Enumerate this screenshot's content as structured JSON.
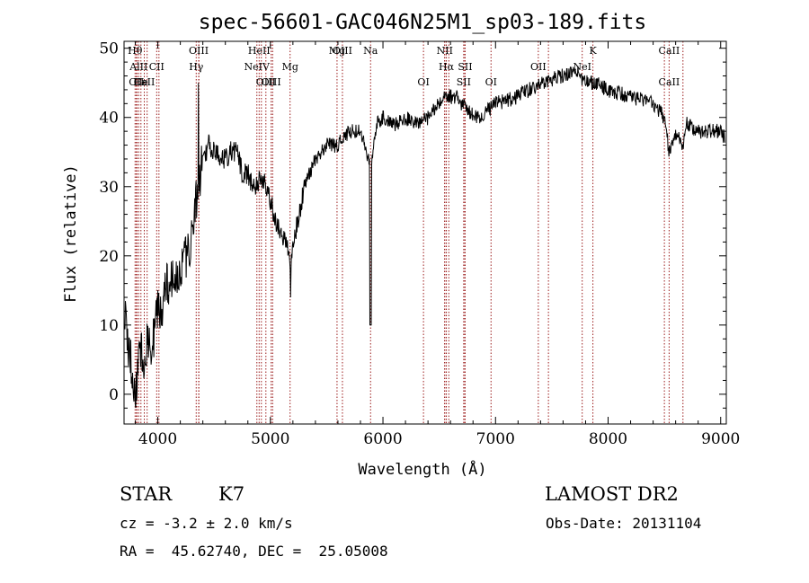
{
  "chart_data": {
    "type": "line",
    "title": "spec-56601-GAC046N25M1_sp03-189.fits",
    "xlabel": "Wavelength (Å)",
    "ylabel": "Flux (relative)",
    "xlim": [
      3700,
      9050
    ],
    "ylim": [
      -4.3,
      51
    ],
    "x_ticks": [
      4000,
      5000,
      6000,
      7000,
      8000,
      9000
    ],
    "y_ticks": [
      0,
      10,
      20,
      30,
      40,
      50
    ],
    "grid": false,
    "spectral_lines": [
      {
        "label": "Hθ",
        "wavelength": 3798,
        "row": 0
      },
      {
        "label": "AlII",
        "wavelength": 3830,
        "row": 1
      },
      {
        "label": "CII",
        "wavelength": 3810,
        "row": 2
      },
      {
        "label": "He",
        "wavelength": 3850,
        "row": 2
      },
      {
        "label": "CaII",
        "wavelength": 3880,
        "row": 2
      },
      {
        "label": "CII",
        "wavelength": 3990,
        "row": 1
      },
      {
        "label": "OIII",
        "wavelength": 4363,
        "row": 0
      },
      {
        "label": "Hγ",
        "wavelength": 4341,
        "row": 1
      },
      {
        "label": "HeII",
        "wavelength": 4900,
        "row": 0
      },
      {
        "label": "NeIV",
        "wavelength": 4880,
        "row": 1
      },
      {
        "label": "OIII",
        "wavelength": 4960,
        "row": 2
      },
      {
        "label": "OIII",
        "wavelength": 5007,
        "row": 2
      },
      {
        "label": "Mg",
        "wavelength": 5175,
        "row": 1
      },
      {
        "label": "Mg",
        "wavelength": 5592,
        "row": 0
      },
      {
        "label": "OIII",
        "wavelength": 5640,
        "row": 0
      },
      {
        "label": "Na",
        "wavelength": 5890,
        "row": 0
      },
      {
        "label": "OI",
        "wavelength": 6360,
        "row": 2
      },
      {
        "label": "NII",
        "wavelength": 6549,
        "row": 0
      },
      {
        "label": "Hα",
        "wavelength": 6563,
        "row": 1
      },
      {
        "label": "SII",
        "wavelength": 6730,
        "row": 1
      },
      {
        "label": "SII",
        "wavelength": 6717,
        "row": 2
      },
      {
        "label": "OI",
        "wavelength": 6960,
        "row": 2
      },
      {
        "label": "OII",
        "wavelength": 7380,
        "row": 1
      },
      {
        "label": "K",
        "wavelength": 7865,
        "row": 0
      },
      {
        "label": "NeI",
        "wavelength": 7770,
        "row": 1
      },
      {
        "label": "CaII",
        "wavelength": 8542,
        "row": 0
      },
      {
        "label": "CaII",
        "wavelength": 8542,
        "row": 2
      }
    ],
    "extra_line_markers": [
      3815,
      3905,
      4010,
      4365,
      4920,
      5020,
      6548,
      6585,
      6720,
      7470,
      8500,
      8665
    ],
    "spectrum_anchors": [
      [
        3700,
        12
      ],
      [
        3730,
        8
      ],
      [
        3760,
        5
      ],
      [
        3790,
        -1
      ],
      [
        3820,
        3
      ],
      [
        3850,
        7
      ],
      [
        3880,
        5
      ],
      [
        3910,
        8
      ],
      [
        3940,
        6
      ],
      [
        3970,
        9
      ],
      [
        4000,
        12
      ],
      [
        4040,
        13
      ],
      [
        4080,
        16
      ],
      [
        4120,
        16
      ],
      [
        4170,
        17
      ],
      [
        4230,
        19
      ],
      [
        4280,
        21
      ],
      [
        4320,
        26
      ],
      [
        4360,
        30
      ],
      [
        4400,
        34
      ],
      [
        4450,
        36
      ],
      [
        4500,
        35
      ],
      [
        4550,
        34
      ],
      [
        4600,
        34
      ],
      [
        4650,
        35
      ],
      [
        4700,
        35
      ],
      [
        4750,
        32
      ],
      [
        4800,
        32
      ],
      [
        4850,
        30
      ],
      [
        4900,
        31
      ],
      [
        4950,
        31
      ],
      [
        5000,
        28
      ],
      [
        5050,
        25
      ],
      [
        5100,
        23
      ],
      [
        5150,
        22
      ],
      [
        5175,
        18
      ],
      [
        5220,
        23
      ],
      [
        5300,
        30
      ],
      [
        5400,
        34
      ],
      [
        5500,
        36
      ],
      [
        5600,
        36
      ],
      [
        5700,
        38
      ],
      [
        5800,
        38
      ],
      [
        5890,
        33
      ],
      [
        5950,
        39
      ],
      [
        6000,
        40
      ],
      [
        6100,
        39
      ],
      [
        6200,
        40
      ],
      [
        6300,
        39
      ],
      [
        6400,
        40
      ],
      [
        6500,
        42
      ],
      [
        6563,
        43
      ],
      [
        6650,
        43
      ],
      [
        6750,
        41
      ],
      [
        6850,
        40
      ],
      [
        7000,
        42
      ],
      [
        7200,
        43
      ],
      [
        7400,
        45
      ],
      [
        7600,
        46
      ],
      [
        7700,
        47
      ],
      [
        7800,
        45
      ],
      [
        7900,
        45
      ],
      [
        8000,
        44
      ],
      [
        8200,
        43
      ],
      [
        8400,
        42
      ],
      [
        8500,
        40
      ],
      [
        8542,
        35
      ],
      [
        8600,
        38
      ],
      [
        8662,
        36
      ],
      [
        8700,
        39
      ],
      [
        8800,
        38
      ],
      [
        8900,
        38
      ],
      [
        9000,
        38
      ],
      [
        9040,
        37
      ]
    ]
  },
  "info": {
    "object_class": "STAR",
    "subclass": "K7",
    "survey": "LAMOST DR2",
    "cz": "cz = -3.2 ± 2.0 km/s",
    "obs_date": "Obs-Date: 20131104",
    "coords": "RA =  45.62740, DEC =  25.05008"
  }
}
